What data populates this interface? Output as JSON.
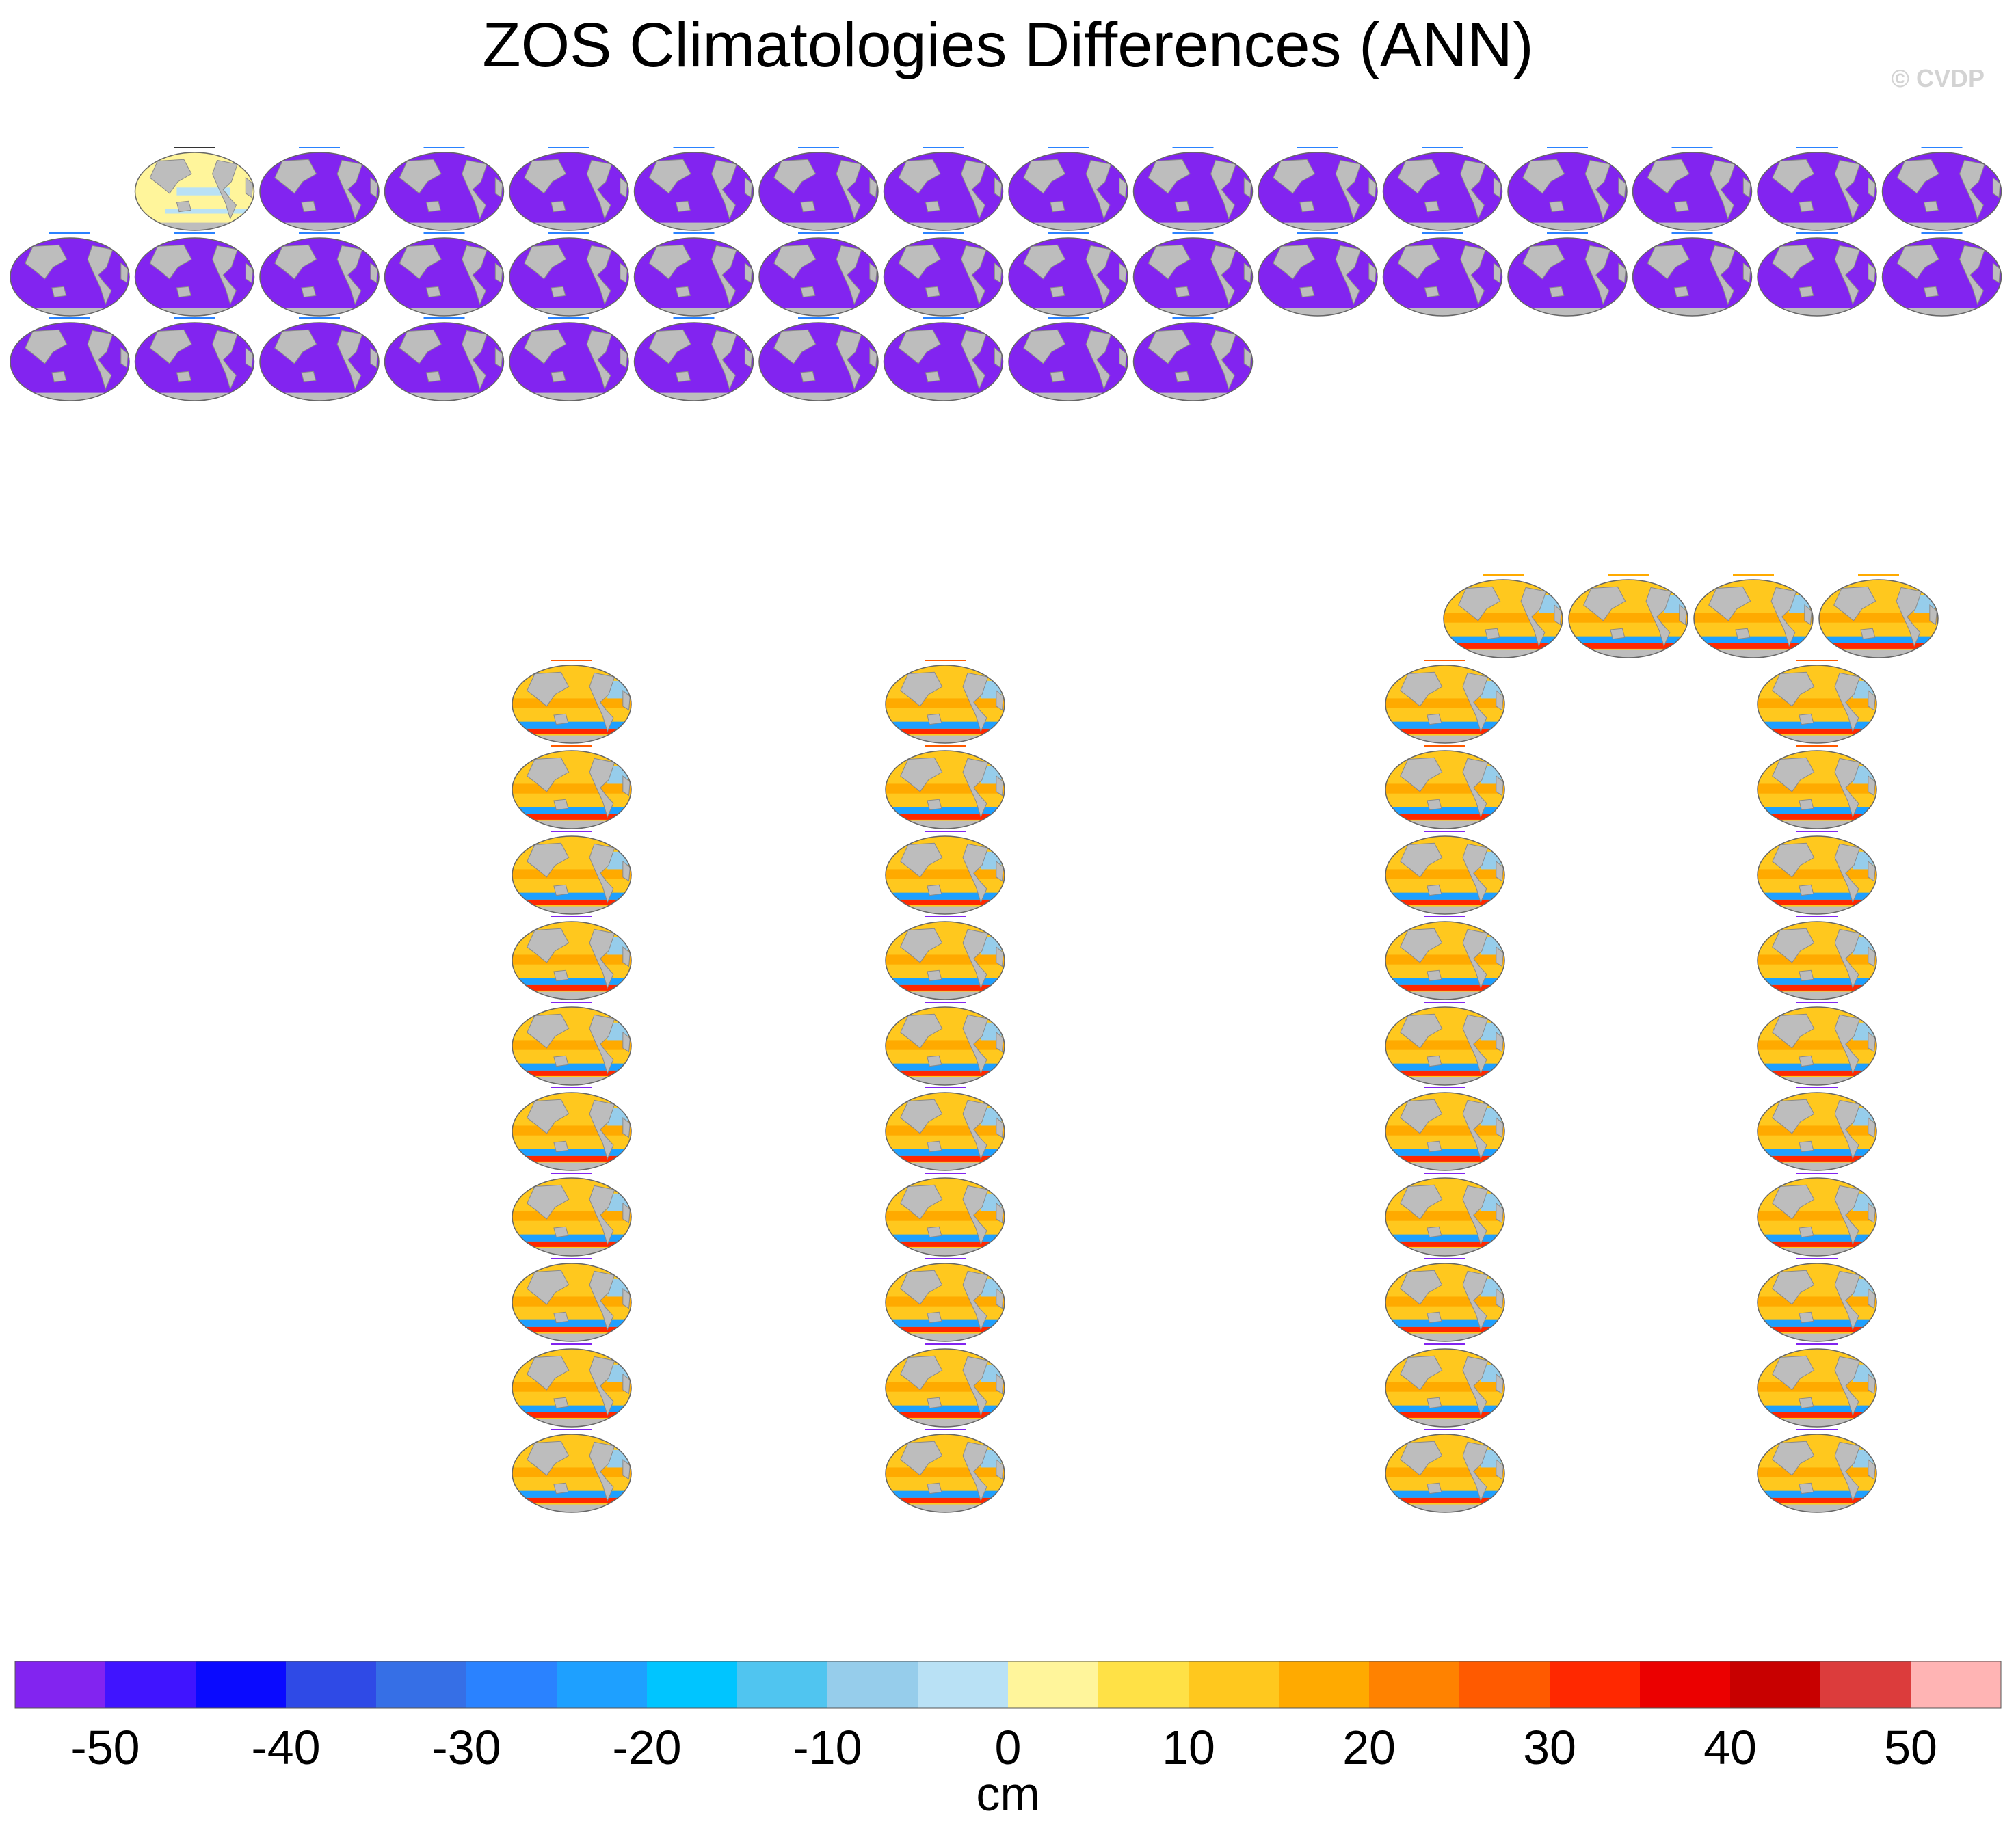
{
  "page": {
    "title": "ZOS Climatologies Differences (ANN)",
    "watermark": "© CVDP"
  },
  "chart_data": {
    "type": "heatmap",
    "description_kind": "panel grid of global map differences",
    "colorbar": {
      "label": "cm",
      "ticks": [
        "-50",
        "-40",
        "-30",
        "-20",
        "-10",
        "0",
        "10",
        "20",
        "30",
        "40",
        "50"
      ],
      "levels": [
        -50,
        -45,
        -40,
        -35,
        -30,
        -25,
        -20,
        -15,
        -10,
        -5,
        0,
        5,
        10,
        15,
        20,
        25,
        30,
        35,
        40,
        45,
        50
      ],
      "colors": [
        "#8224f0",
        "#4014ff",
        "#0a0aff",
        "#2f4ae6",
        "#366fe6",
        "#2a82ff",
        "#1ea0ff",
        "#00c5ff",
        "#50c5f0",
        "#96cdeb",
        "#b9e1f5",
        "#fff59b",
        "#ffe146",
        "#ffc81e",
        "#ffaa00",
        "#ff8200",
        "#ff5a00",
        "#ff2800",
        "#eb0000",
        "#c80000",
        "#dc3c3c",
        "#ffb4b4"
      ]
    },
    "panel_styles": {
      "reference": {
        "ocean": "#fff59b",
        "accent": "#b9e1f5"
      },
      "access": {
        "ocean": "#8224f0"
      },
      "cesm": {
        "ocean": "#ffc81e"
      }
    }
  }
}
